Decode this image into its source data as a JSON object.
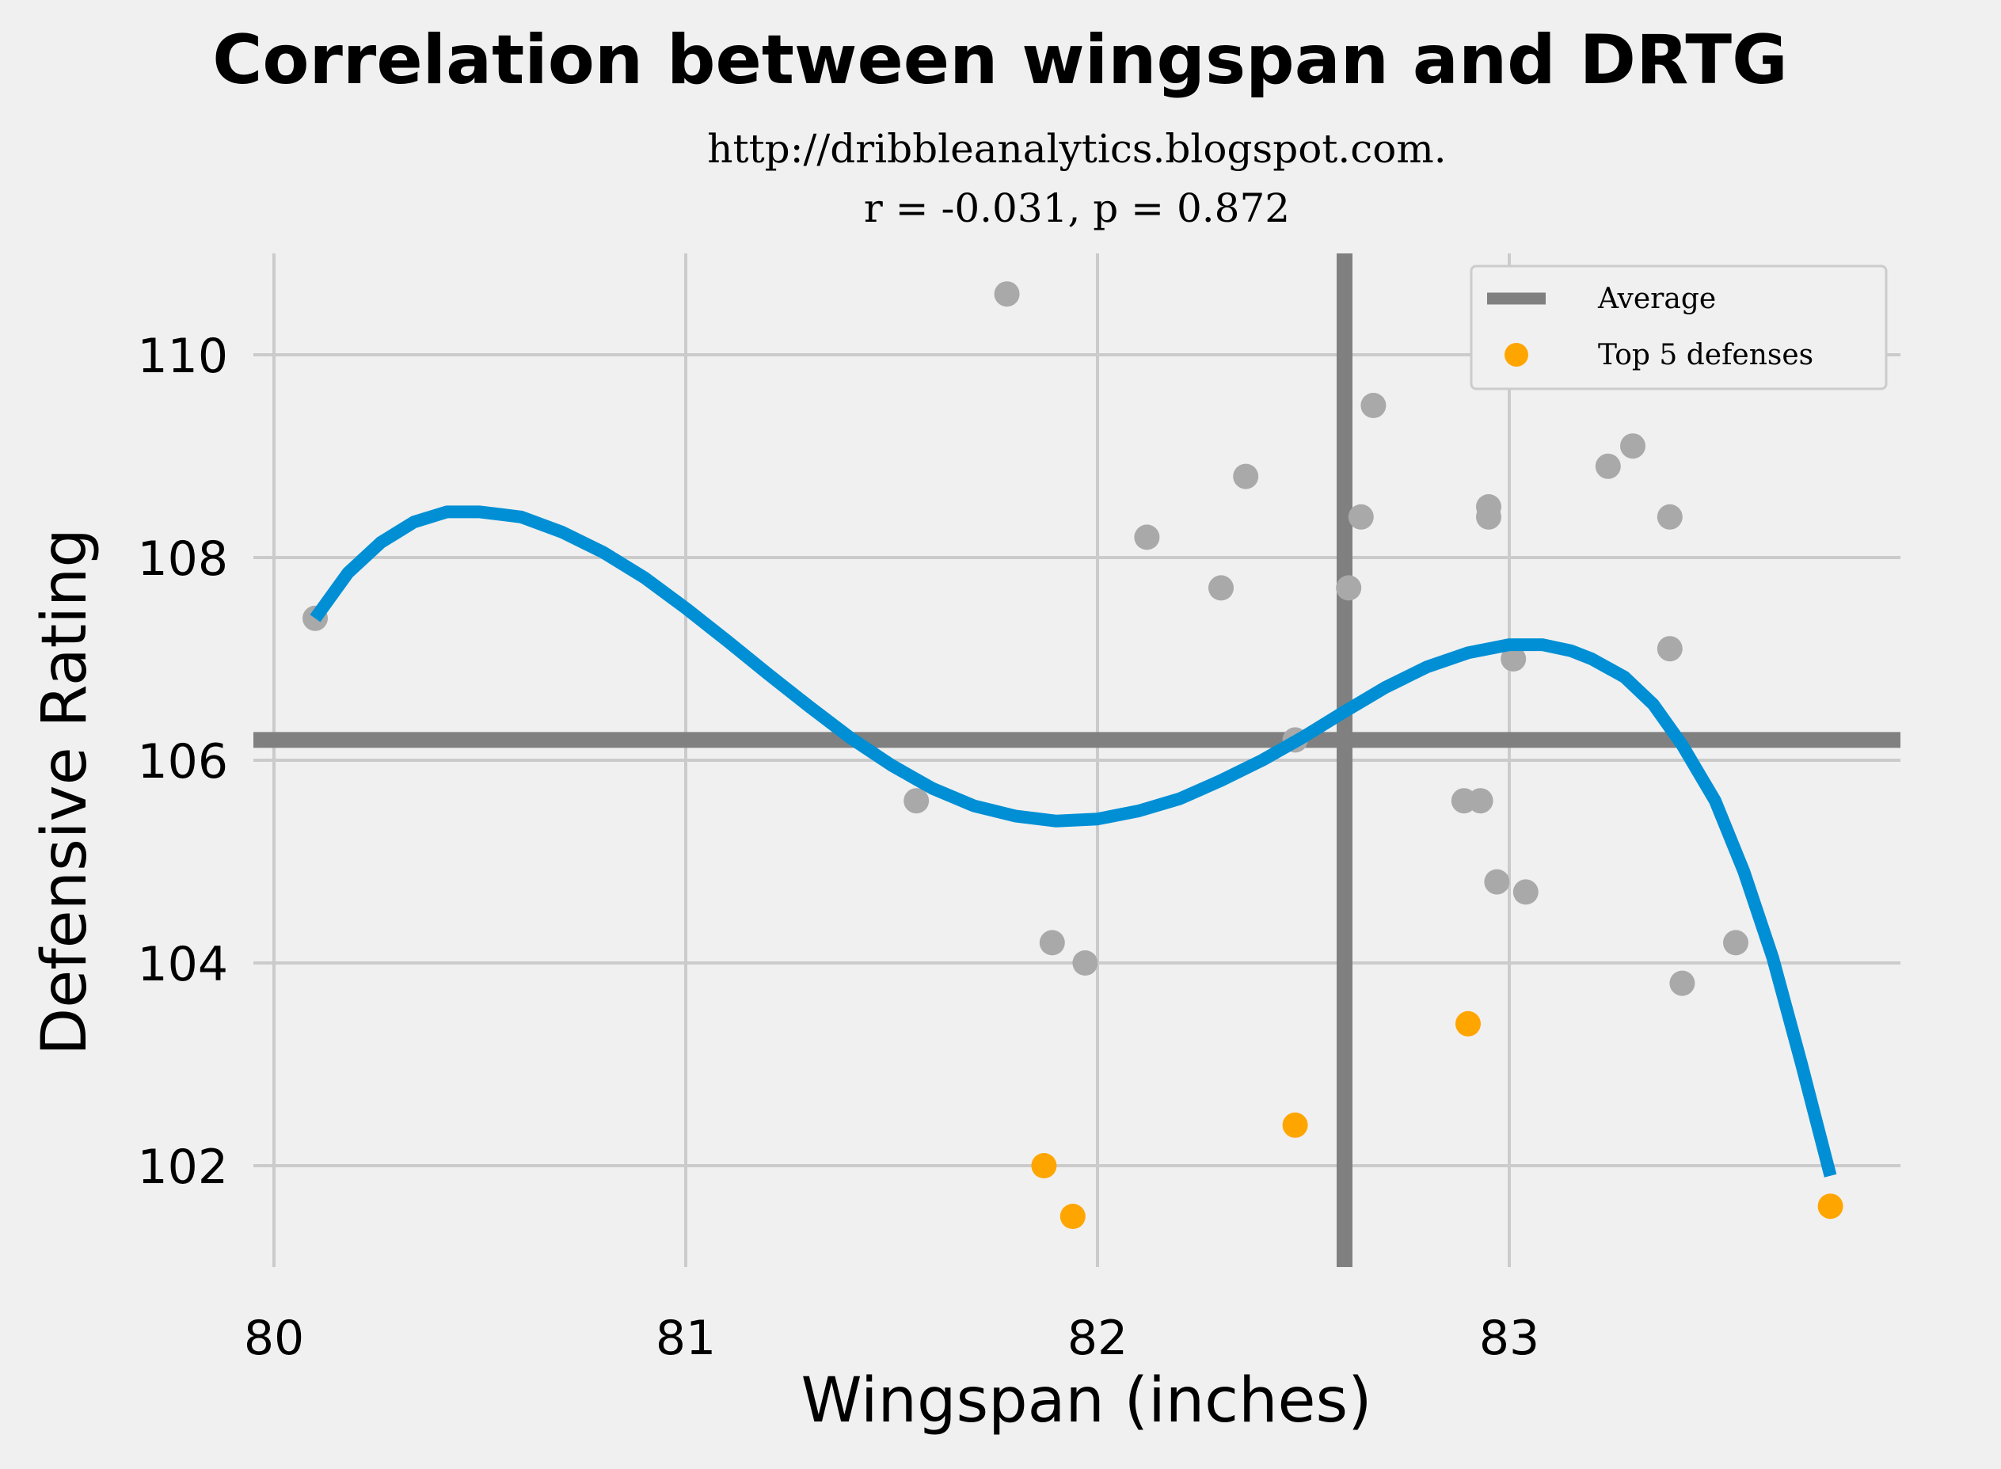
{
  "chart_data": {
    "type": "scatter",
    "title": "Correlation between wingspan and DRTG",
    "subtitle_lines": [
      "http://dribbleanalytics.blogspot.com.",
      "r = -0.031, p = 0.872"
    ],
    "xlabel": "Wingspan (inches)",
    "ylabel": "Defensive Rating",
    "xlim": [
      79.95,
      83.95
    ],
    "ylim": [
      101.0,
      111.0
    ],
    "xticks": [
      80,
      81,
      82,
      83
    ],
    "yticks": [
      102,
      104,
      106,
      108,
      110
    ],
    "grid": true,
    "legend_position": "top-right",
    "legend": [
      {
        "label": "Average",
        "kind": "line",
        "color": "#808080"
      },
      {
        "label": "Top 5 defenses",
        "kind": "marker",
        "color": "#ffa500"
      }
    ],
    "average": {
      "x": 82.6,
      "y": 106.2
    },
    "series": [
      {
        "color": "#a9a9a9",
        "points": [
          [
            80.1,
            107.4
          ],
          [
            81.78,
            110.6
          ],
          [
            81.56,
            105.6
          ],
          [
            81.89,
            104.2
          ],
          [
            81.97,
            104.0
          ],
          [
            82.12,
            108.2
          ],
          [
            82.3,
            107.7
          ],
          [
            82.36,
            108.8
          ],
          [
            82.48,
            106.2
          ],
          [
            82.61,
            107.7
          ],
          [
            82.64,
            108.4
          ],
          [
            82.67,
            109.5
          ],
          [
            82.89,
            105.6
          ],
          [
            82.93,
            105.6
          ],
          [
            82.95,
            108.5
          ],
          [
            82.95,
            108.4
          ],
          [
            82.97,
            104.8
          ],
          [
            83.01,
            107.0
          ],
          [
            83.04,
            104.7
          ],
          [
            83.24,
            108.9
          ],
          [
            83.3,
            109.1
          ],
          [
            83.39,
            108.4
          ],
          [
            83.39,
            107.1
          ],
          [
            83.42,
            103.8
          ],
          [
            83.55,
            104.2
          ]
        ]
      },
      {
        "name": "Top 5 defenses",
        "color": "#ffa500",
        "points": [
          [
            81.87,
            102.0
          ],
          [
            81.94,
            101.5
          ],
          [
            82.48,
            102.4
          ],
          [
            82.9,
            103.4
          ],
          [
            83.78,
            101.6
          ]
        ]
      }
    ],
    "fit_curve": {
      "color": "#008fd5",
      "points": [
        [
          80.1,
          107.4
        ],
        [
          80.18,
          107.85
        ],
        [
          80.26,
          108.15
        ],
        [
          80.34,
          108.35
        ],
        [
          80.42,
          108.45
        ],
        [
          80.5,
          108.45
        ],
        [
          80.6,
          108.4
        ],
        [
          80.7,
          108.25
        ],
        [
          80.8,
          108.05
        ],
        [
          80.9,
          107.8
        ],
        [
          81.0,
          107.5
        ],
        [
          81.1,
          107.18
        ],
        [
          81.2,
          106.85
        ],
        [
          81.3,
          106.53
        ],
        [
          81.4,
          106.22
        ],
        [
          81.5,
          105.95
        ],
        [
          81.6,
          105.72
        ],
        [
          81.7,
          105.55
        ],
        [
          81.8,
          105.45
        ],
        [
          81.9,
          105.4
        ],
        [
          82.0,
          105.42
        ],
        [
          82.1,
          105.5
        ],
        [
          82.2,
          105.62
        ],
        [
          82.3,
          105.8
        ],
        [
          82.4,
          106.0
        ],
        [
          82.5,
          106.23
        ],
        [
          82.6,
          106.48
        ],
        [
          82.7,
          106.72
        ],
        [
          82.8,
          106.92
        ],
        [
          82.9,
          107.06
        ],
        [
          83.0,
          107.14
        ],
        [
          83.08,
          107.14
        ],
        [
          83.15,
          107.08
        ],
        [
          83.2,
          107.0
        ],
        [
          83.28,
          106.82
        ],
        [
          83.35,
          106.55
        ],
        [
          83.42,
          106.15
        ],
        [
          83.5,
          105.6
        ],
        [
          83.57,
          104.9
        ],
        [
          83.64,
          104.05
        ],
        [
          83.71,
          103.0
        ],
        [
          83.78,
          101.9
        ]
      ]
    }
  }
}
